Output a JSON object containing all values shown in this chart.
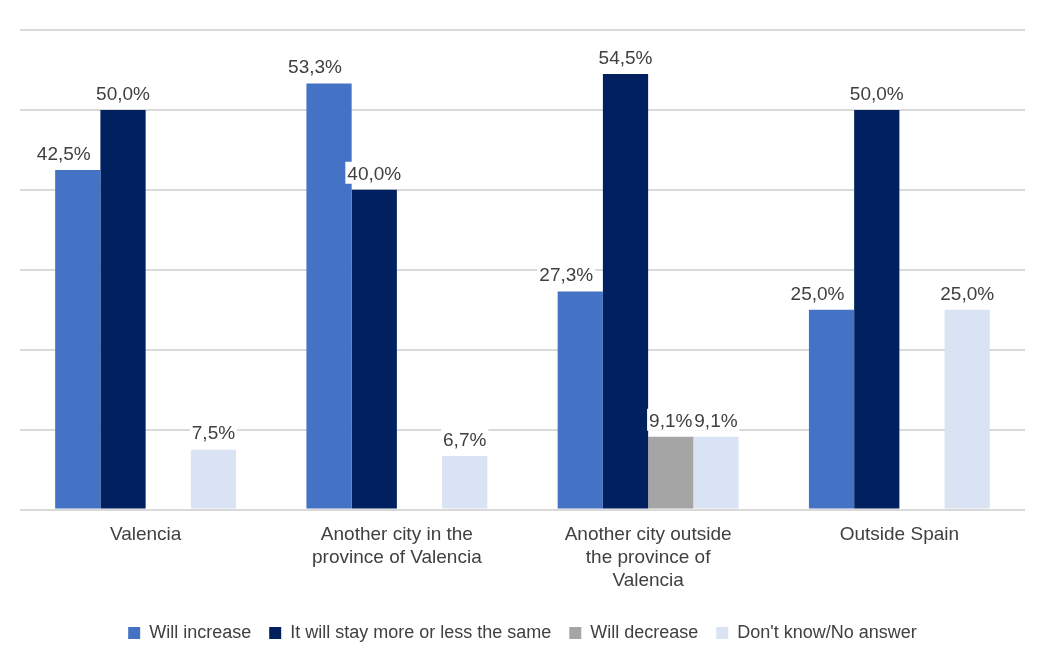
{
  "chart_data": {
    "type": "bar",
    "categories": [
      "Valencia",
      "Another city in the province of Valencia",
      "Another city outside the province of Valencia",
      "Outside Spain"
    ],
    "series": [
      {
        "name": "Will increase",
        "color": "#4472c4",
        "values": [
          42.5,
          53.3,
          27.3,
          25.0
        ],
        "value_labels": [
          "42,5%",
          "53,3%",
          "27,3%",
          "25,0%"
        ]
      },
      {
        "name": "It will stay more or less the same",
        "color": "#002060",
        "values": [
          50.0,
          40.0,
          54.5,
          50.0
        ],
        "value_labels": [
          "50,0%",
          "40,0%",
          "54,5%",
          "50,0%"
        ]
      },
      {
        "name": "Will decrease",
        "color": "#a5a5a5",
        "values": [
          0,
          0,
          9.1,
          0
        ],
        "value_labels": [
          null,
          null,
          "9,1%",
          null
        ]
      },
      {
        "name": "Don't know/No answer",
        "color": "#dae3f3",
        "values": [
          7.5,
          6.7,
          9.1,
          25.0
        ],
        "value_labels": [
          "7,5%",
          "6,7%",
          "9,1%",
          "25,0%"
        ]
      }
    ],
    "ylim": [
      0,
      60
    ],
    "yticks": [
      {
        "value": 0,
        "label": null
      },
      {
        "value": 10,
        "label": null
      },
      {
        "value": 20,
        "label": null
      },
      {
        "value": 30,
        "label": null
      },
      {
        "value": 40,
        "label": null
      },
      {
        "value": 50,
        "label": null
      },
      {
        "value": 60,
        "label": null
      }
    ],
    "grid": "y",
    "legend": "bottom",
    "tick_labels": "x"
  }
}
